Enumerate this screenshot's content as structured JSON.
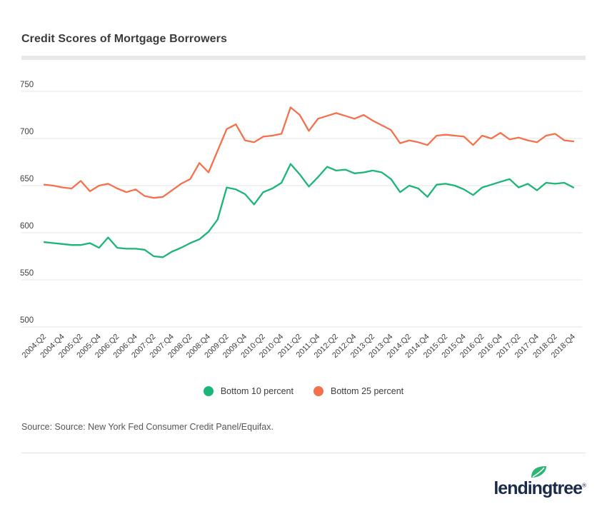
{
  "page": {
    "title": "Credit Scores of Mortgage Borrowers",
    "source_note": "Source: Source: New York Fed Consumer Credit Panel/Equifax.",
    "brand": {
      "name": "lendingtree",
      "registered": "®",
      "text_color": "#1a2b49",
      "leaf_color": "#2db673"
    }
  },
  "chart_data": {
    "type": "line",
    "title": "Credit Scores of Mortgage Borrowers",
    "xlabel": "",
    "ylabel": "",
    "ylim": [
      500,
      760
    ],
    "yticks": [
      500,
      550,
      600,
      650,
      700,
      750
    ],
    "grid": true,
    "legend_position": "bottom",
    "x_ticks_every": 2,
    "categories": [
      "2004:Q2",
      "2004:Q3",
      "2004:Q4",
      "2005:Q1",
      "2005:Q2",
      "2005:Q3",
      "2005:Q4",
      "2006:Q1",
      "2006:Q2",
      "2006:Q3",
      "2006:Q4",
      "2007:Q1",
      "2007:Q2",
      "2007:Q3",
      "2007:Q4",
      "2008:Q1",
      "2008:Q2",
      "2008:Q3",
      "2008:Q4",
      "2009:Q1",
      "2009:Q2",
      "2009:Q3",
      "2009:Q4",
      "2010:Q1",
      "2010:Q2",
      "2010:Q3",
      "2010:Q4",
      "2011:Q1",
      "2011:Q2",
      "2011:Q3",
      "2011:Q4",
      "2012:Q1",
      "2012:Q2",
      "2012:Q3",
      "2012:Q4",
      "2013:Q1",
      "2013:Q2",
      "2013:Q3",
      "2013:Q4",
      "2014:Q1",
      "2014:Q2",
      "2014:Q3",
      "2014:Q4",
      "2015:Q1",
      "2015:Q2",
      "2015:Q3",
      "2015:Q4",
      "2016:Q1",
      "2016:Q2",
      "2016:Q3",
      "2016:Q4",
      "2017:Q1",
      "2017:Q2",
      "2017:Q3",
      "2017:Q4",
      "2018:Q1",
      "2018:Q2",
      "2018:Q3",
      "2018:Q4"
    ],
    "series": [
      {
        "name": "Bottom 10 percent",
        "color": "#1cb578",
        "values": [
          590,
          589,
          588,
          587,
          587,
          589,
          584,
          595,
          584,
          583,
          583,
          582,
          575,
          574,
          580,
          584,
          589,
          593,
          601,
          614,
          648,
          646,
          641,
          630,
          643,
          647,
          653,
          673,
          662,
          649,
          659,
          670,
          666,
          667,
          663,
          664,
          666,
          664,
          657,
          643,
          650,
          647,
          638,
          651,
          652,
          650,
          646,
          640,
          648,
          651,
          654,
          657,
          648,
          652,
          645,
          653,
          652,
          653,
          648
        ]
      },
      {
        "name": "Bottom 25 percent",
        "color": "#f4714c",
        "values": [
          651,
          650,
          648,
          647,
          655,
          644,
          650,
          652,
          647,
          643,
          646,
          639,
          637,
          638,
          645,
          652,
          657,
          674,
          664,
          687,
          710,
          715,
          698,
          696,
          702,
          703,
          705,
          733,
          725,
          708,
          721,
          724,
          727,
          724,
          721,
          725,
          719,
          714,
          709,
          695,
          698,
          696,
          693,
          703,
          704,
          703,
          702,
          693,
          703,
          700,
          706,
          699,
          701,
          698,
          696,
          703,
          705,
          698,
          697
        ]
      }
    ]
  }
}
